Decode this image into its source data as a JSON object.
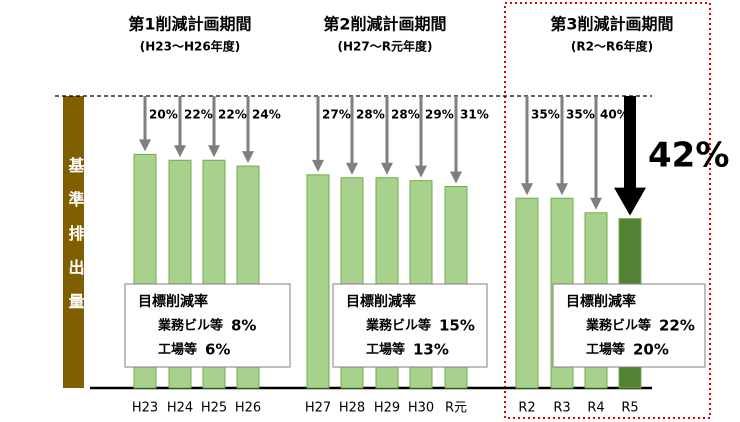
{
  "chart_data": {
    "type": "bar",
    "y_label": "基準排出量",
    "ylim": [
      0,
      100
    ],
    "bar_stroke": "#70ad47",
    "periods": [
      {
        "title": "第1削減計画期間",
        "subtitle": "(H23～H26年度)",
        "categories": [
          "H23",
          "H24",
          "H25",
          "H26"
        ],
        "values": [
          20,
          22,
          22,
          24
        ],
        "value_labels": [
          "20%",
          "22%",
          "22%",
          "24%"
        ],
        "colors": [
          "#a9d18e",
          "#a9d18e",
          "#a9d18e",
          "#a9d18e"
        ],
        "arrow_colors": [
          "#7f7f7f",
          "#7f7f7f",
          "#7f7f7f",
          "#7f7f7f"
        ],
        "emphasize": [
          false,
          false,
          false,
          false
        ],
        "target": {
          "heading": "目標削減率",
          "lines": [
            {
              "label": "業務ビル等",
              "value": "8%"
            },
            {
              "label": "工場等",
              "value": "6%"
            }
          ]
        }
      },
      {
        "title": "第2削減計画期間",
        "subtitle": "(H27～R元年度)",
        "categories": [
          "H27",
          "H28",
          "H29",
          "H30",
          "R元"
        ],
        "values": [
          27,
          28,
          28,
          29,
          31
        ],
        "value_labels": [
          "27%",
          "28%",
          "28%",
          "29%",
          "31%"
        ],
        "colors": [
          "#a9d18e",
          "#a9d18e",
          "#a9d18e",
          "#a9d18e",
          "#a9d18e"
        ],
        "arrow_colors": [
          "#7f7f7f",
          "#7f7f7f",
          "#7f7f7f",
          "#7f7f7f",
          "#7f7f7f"
        ],
        "emphasize": [
          false,
          false,
          false,
          false,
          false
        ],
        "target": {
          "heading": "目標削減率",
          "lines": [
            {
              "label": "業務ビル等",
              "value": "15%"
            },
            {
              "label": "工場等",
              "value": "13%"
            }
          ]
        }
      },
      {
        "title": "第3削減計画期間",
        "subtitle": "(R2～R6年度)",
        "categories": [
          "R2",
          "R3",
          "R4",
          "R5"
        ],
        "values": [
          35,
          35,
          40,
          42
        ],
        "value_labels": [
          "35%",
          "35%",
          "40%",
          "42%"
        ],
        "colors": [
          "#a9d18e",
          "#a9d18e",
          "#a9d18e",
          "#548235"
        ],
        "arrow_colors": [
          "#7f7f7f",
          "#7f7f7f",
          "#7f7f7f",
          "#000000"
        ],
        "emphasize": [
          false,
          false,
          false,
          true
        ],
        "target": {
          "heading": "目標削減率",
          "lines": [
            {
              "label": "業務ビル等",
              "value": "22%"
            },
            {
              "label": "工場等",
              "value": "20%"
            }
          ]
        }
      }
    ]
  }
}
